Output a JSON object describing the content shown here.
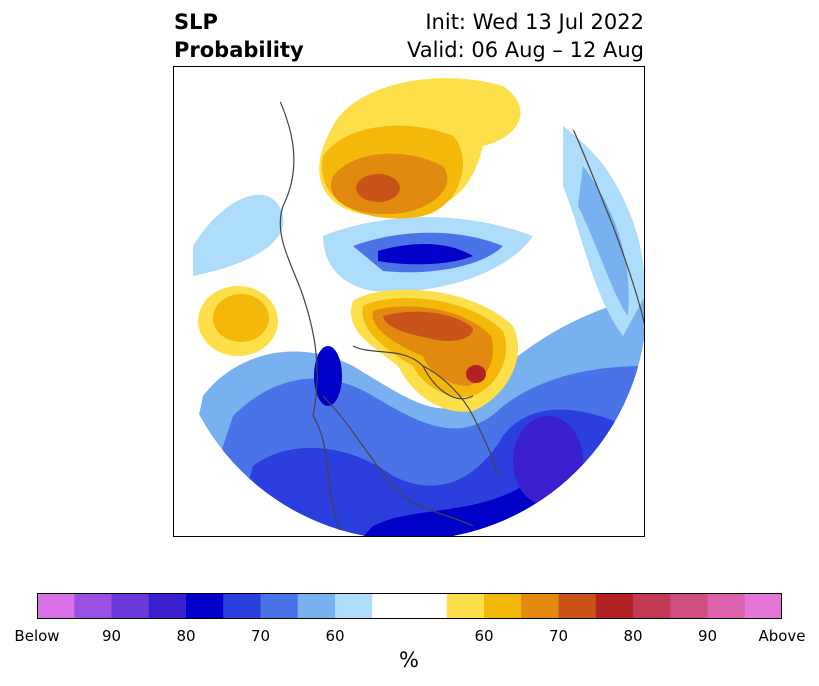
{
  "title": {
    "left_line1": "SLP",
    "left_line2": "Probability",
    "init": "Init: Wed 13 Jul 2022",
    "valid": "Valid: 06 Aug – 12 Aug"
  },
  "colorbar": {
    "colors": [
      "#d970e8",
      "#9a50e0",
      "#6b38d8",
      "#3a1fcf",
      "#0000c8",
      "#2a3fdd",
      "#4a73e8",
      "#78b0f0",
      "#aedcfb",
      "#ffffff",
      "#ffffff",
      "#fddf49",
      "#f3b80a",
      "#e18a0f",
      "#c9541a",
      "#b32222",
      "#c23a56",
      "#cf4f80",
      "#dc62ae",
      "#e675d8"
    ],
    "tick_labels": [
      "Below",
      "90",
      "80",
      "70",
      "60",
      "60",
      "70",
      "80",
      "90",
      "Above"
    ],
    "unit": "%"
  },
  "map": {
    "projection": "polar stereographic (Northern Hemisphere)",
    "features": [
      "coastlines",
      "country borders",
      "US state borders"
    ]
  }
}
